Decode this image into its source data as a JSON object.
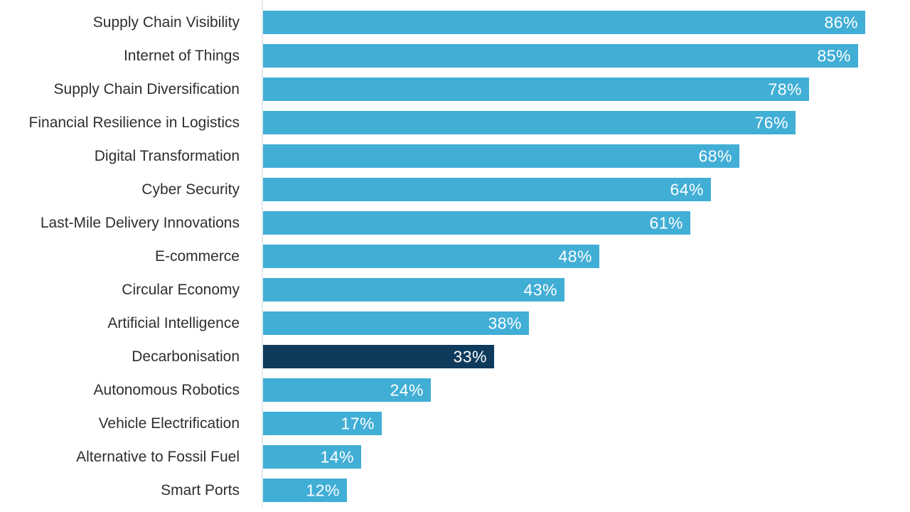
{
  "chart_data": {
    "type": "bar",
    "orientation": "horizontal",
    "title": "",
    "xlabel": "",
    "ylabel": "",
    "value_suffix": "%",
    "xlim": [
      0,
      92
    ],
    "grid": false,
    "legend": "none",
    "categories": [
      "Supply Chain Visibility",
      "Internet of Things",
      "Supply Chain Diversification",
      "Financial Resilience in Logistics",
      "Digital Transformation",
      "Cyber Security",
      "Last-Mile Delivery Innovations",
      "E-commerce",
      "Circular Economy",
      "Artificial Intelligence",
      "Decarbonisation",
      "Autonomous Robotics",
      "Vehicle Electrification",
      "Alternative to Fossil Fuel",
      "Smart Ports"
    ],
    "values": [
      86,
      85,
      78,
      76,
      68,
      64,
      61,
      48,
      43,
      38,
      33,
      24,
      17,
      14,
      12
    ],
    "data_labels": [
      "86%",
      "85%",
      "78%",
      "76%",
      "68%",
      "64%",
      "61%",
      "48%",
      "43%",
      "38%",
      "33%",
      "24%",
      "17%",
      "14%",
      "12%"
    ],
    "highlight_category": "Decarbonisation",
    "colors": {
      "bar": "#41aed6",
      "highlight_bar": "#0e3a5c",
      "value_label": "#ffffff",
      "category_label": "#2e2e2e",
      "axis_line": "#e3eaee",
      "background": "#ffffff"
    }
  }
}
